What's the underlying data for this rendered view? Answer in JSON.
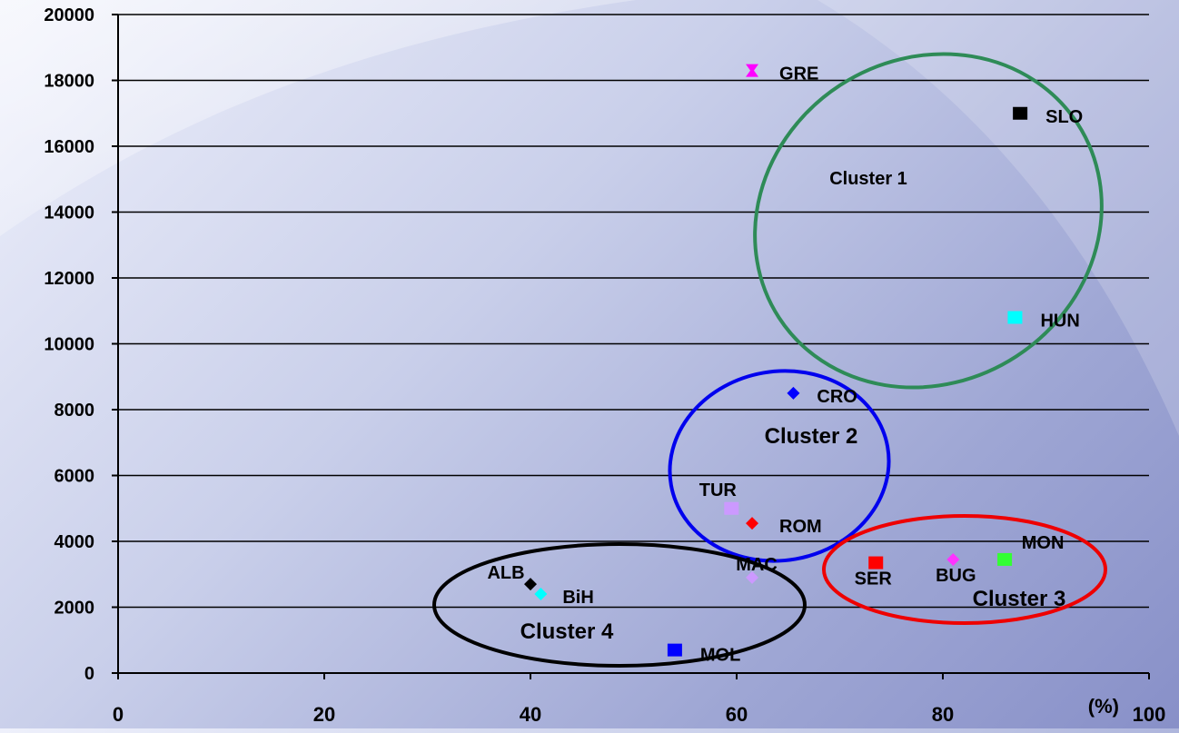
{
  "chart_data": {
    "type": "scatter",
    "x_unit_label": "(%)",
    "xlim": [
      0,
      100
    ],
    "ylim": [
      0,
      20000
    ],
    "x_ticks": [
      0,
      20,
      40,
      60,
      80,
      100
    ],
    "y_ticks": [
      0,
      2000,
      4000,
      6000,
      8000,
      10000,
      12000,
      14000,
      16000,
      18000,
      20000
    ],
    "grid": true,
    "points": [
      {
        "label": "GRE",
        "x": 61.5,
        "y": 18300,
        "color": "#ff00ff",
        "shape": "star"
      },
      {
        "label": "SLO",
        "x": 87.5,
        "y": 17000,
        "color": "#000000",
        "shape": "square"
      },
      {
        "label": "HUN",
        "x": 87.0,
        "y": 10800,
        "color": "#00ffff",
        "shape": "square"
      },
      {
        "label": "CRO",
        "x": 65.5,
        "y": 8500,
        "color": "#0000ff",
        "shape": "diamond"
      },
      {
        "label": "TUR",
        "x": 59.5,
        "y": 5000,
        "color": "#cc99ff",
        "shape": "square"
      },
      {
        "label": "ROM",
        "x": 61.5,
        "y": 4550,
        "color": "#ff0000",
        "shape": "diamond"
      },
      {
        "label": "SER",
        "x": 73.5,
        "y": 3350,
        "color": "#ff0000",
        "shape": "square"
      },
      {
        "label": "BUG",
        "x": 81.0,
        "y": 3450,
        "color": "#ff33ff",
        "shape": "diamond"
      },
      {
        "label": "MON",
        "x": 86.0,
        "y": 3450,
        "color": "#33ff33",
        "shape": "square"
      },
      {
        "label": "MAC",
        "x": 61.5,
        "y": 2900,
        "color": "#cc99ff",
        "shape": "diamond"
      },
      {
        "label": "ALB",
        "x": 40.0,
        "y": 2700,
        "color": "#000000",
        "shape": "diamond"
      },
      {
        "label": "BiH",
        "x": 41.0,
        "y": 2400,
        "color": "#00ffff",
        "shape": "diamond"
      },
      {
        "label": "MOL",
        "x": 54.0,
        "y": 700,
        "color": "#0000ff",
        "shape": "square"
      }
    ],
    "clusters": [
      {
        "label": "Cluster 1",
        "color": "#2e8b57"
      },
      {
        "label": "Cluster 2",
        "color": "#0000ee"
      },
      {
        "label": "Cluster 3",
        "color": "#ee0000"
      },
      {
        "label": "Cluster 4",
        "color": "#000000"
      }
    ]
  }
}
